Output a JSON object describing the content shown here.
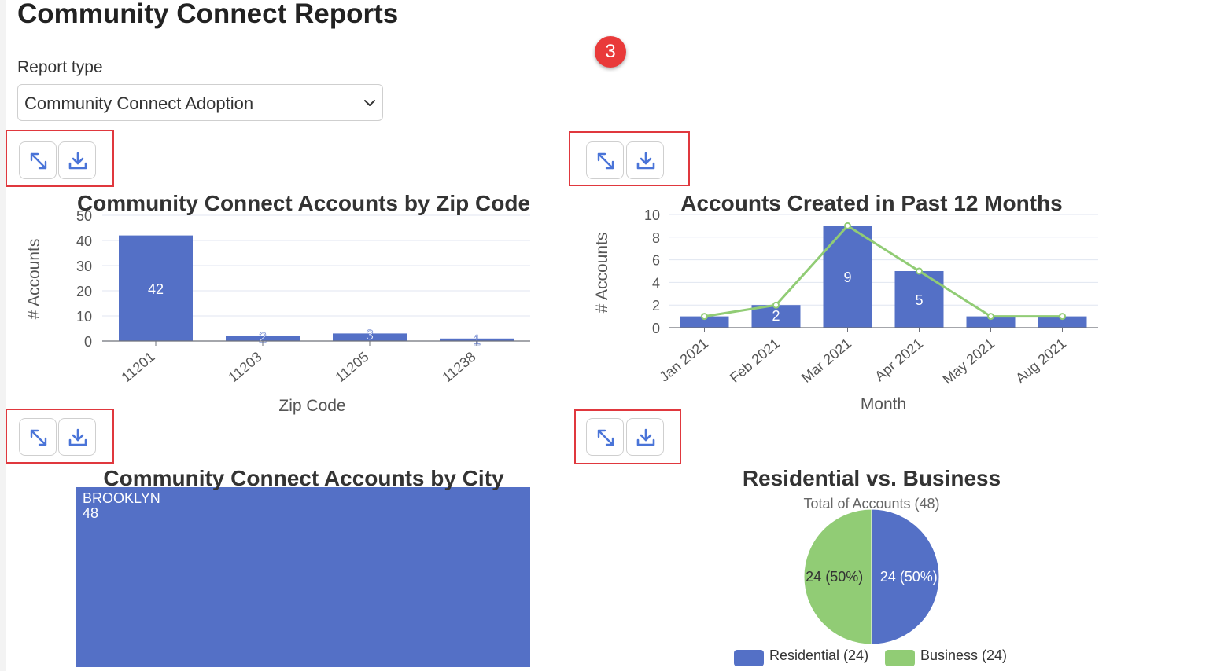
{
  "page": {
    "title": "Community Connect Reports",
    "step_badge": "3"
  },
  "report_type": {
    "label": "Report type",
    "selected": "Community Connect Adoption"
  },
  "toolbar": {
    "expand_icon": "expand-arrows-icon",
    "download_icon": "download-icon"
  },
  "colors": {
    "bar": "#5470c6",
    "line": "#91cc75",
    "highlight": "#e0383e",
    "badge": "#e93a3a"
  },
  "chart_data": [
    {
      "type": "bar",
      "title": "Community Connect Accounts by Zip Code",
      "xlabel": "Zip Code",
      "ylabel": "# Accounts",
      "categories": [
        "11201",
        "11203",
        "11205",
        "11238"
      ],
      "values": [
        42,
        2,
        3,
        1
      ],
      "ylim": [
        0,
        50
      ],
      "yticks": [
        0,
        10,
        20,
        30,
        40,
        50
      ],
      "grid": true,
      "data_labels": true
    },
    {
      "type": "bar",
      "title": "Accounts Created in Past 12 Months",
      "xlabel": "Month",
      "ylabel": "# Accounts",
      "categories": [
        "Jan 2021",
        "Feb 2021",
        "Mar 2021",
        "Apr 2021",
        "May 2021",
        "Aug 2021"
      ],
      "values": [
        1,
        2,
        9,
        5,
        1,
        1
      ],
      "value_labels": [
        "",
        "2",
        "9",
        "5",
        "",
        ""
      ],
      "line_overlay": [
        1,
        2,
        9,
        5,
        1,
        1
      ],
      "ylim": [
        0,
        10
      ],
      "yticks": [
        0,
        2,
        4,
        6,
        8,
        10
      ],
      "grid": true
    },
    {
      "type": "treemap",
      "title": "Community Connect Accounts by City",
      "items": [
        {
          "label": "BROOKLYN",
          "value": 48
        }
      ]
    },
    {
      "type": "pie",
      "title": "Residential vs. Business",
      "subtitle": "Total of Accounts (48)",
      "slices": [
        {
          "name": "Residential",
          "value": 24,
          "label": "24 (50%)",
          "legend": "Residential (24)",
          "color": "#5470c6"
        },
        {
          "name": "Business",
          "value": 24,
          "label": "24 (50%)",
          "legend": "Business (24)",
          "color": "#91cc75"
        }
      ],
      "legend_position": "bottom"
    }
  ]
}
